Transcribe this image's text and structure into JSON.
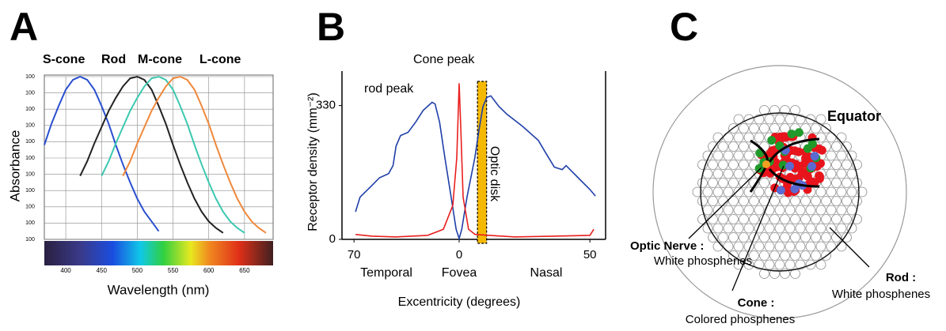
{
  "panels": [
    "A",
    "B",
    "C"
  ],
  "chart_data": [
    {
      "type": "line",
      "x_label": "Wavelength (nm)",
      "y_label": "Absorbance",
      "x": [
        370,
        380,
        390,
        400,
        410,
        420,
        430,
        440,
        450,
        460,
        470,
        480,
        490,
        500,
        510,
        520,
        530,
        540,
        550,
        560,
        570,
        580,
        590,
        600,
        610,
        620,
        630,
        640,
        650,
        660,
        670,
        680,
        690
      ],
      "xlim": [
        370,
        690
      ],
      "xticks": [
        400,
        450,
        500,
        550,
        600,
        650
      ],
      "ylim": [
        0,
        1
      ],
      "yticks": [
        {
          "value": 0,
          "label": "100"
        },
        {
          "value": 0.1,
          "label": "100"
        },
        {
          "value": 0.2,
          "label": "100"
        },
        {
          "value": 0.3,
          "label": "100"
        },
        {
          "value": 0.4,
          "label": "100"
        },
        {
          "value": 0.5,
          "label": "100"
        },
        {
          "value": 0.6,
          "label": "100"
        },
        {
          "value": 0.7,
          "label": "100"
        },
        {
          "value": 0.8,
          "label": "100"
        },
        {
          "value": 0.9,
          "label": "100"
        },
        {
          "value": 1,
          "label": "100"
        }
      ],
      "grid": true,
      "series": [
        {
          "name": "S-cone",
          "color": "#2a4fd0",
          "values": [
            0.58,
            0.71,
            0.82,
            0.92,
            0.98,
            1.0,
            0.98,
            0.92,
            0.82,
            0.71,
            0.58,
            0.46,
            0.35,
            0.25,
            0.17,
            0.11,
            0.05,
            null,
            null,
            null,
            null,
            null,
            null,
            null,
            null,
            null,
            null,
            null,
            null,
            null,
            null,
            null,
            null
          ]
        },
        {
          "name": "Rod",
          "color": "#222222",
          "values": [
            null,
            null,
            null,
            null,
            null,
            0.39,
            0.48,
            0.59,
            0.69,
            0.79,
            0.87,
            0.94,
            0.99,
            1.0,
            0.98,
            0.92,
            0.82,
            0.71,
            0.58,
            0.46,
            0.35,
            0.25,
            0.17,
            0.11,
            0.07,
            0.04,
            null,
            null,
            null,
            null,
            null,
            null,
            null
          ]
        },
        {
          "name": "M-cone",
          "color": "#3cc8b0",
          "values": [
            null,
            null,
            null,
            null,
            null,
            null,
            null,
            null,
            0.39,
            0.48,
            0.59,
            0.69,
            0.79,
            0.87,
            0.94,
            0.99,
            1.0,
            0.98,
            0.92,
            0.82,
            0.71,
            0.58,
            0.46,
            0.35,
            0.25,
            0.17,
            0.11,
            0.07,
            0.04,
            null,
            null,
            null,
            null
          ]
        },
        {
          "name": "L-cone",
          "color": "#f0883a",
          "values": [
            null,
            null,
            null,
            null,
            null,
            null,
            null,
            null,
            null,
            null,
            null,
            0.39,
            0.48,
            0.59,
            0.69,
            0.79,
            0.87,
            0.94,
            0.99,
            1.0,
            0.98,
            0.92,
            0.82,
            0.71,
            0.58,
            0.46,
            0.35,
            0.25,
            0.17,
            0.11,
            0.07,
            0.04,
            null
          ]
        }
      ]
    },
    {
      "type": "line",
      "x_label": "Excentricity (degrees)",
      "y_label": "Receptor density (mm⁻²)",
      "xlim": [
        -78,
        56
      ],
      "xticks": [
        {
          "value": -70,
          "label": "70"
        },
        0,
        50
      ],
      "ylim": [
        0,
        415
      ],
      "yticks": [
        0,
        330
      ],
      "annotations": [
        "Temporal",
        "Fovea",
        "Nasal"
      ],
      "optic_disk": {
        "label": "Optic disk",
        "x": [
          7,
          10.5
        ]
      },
      "series": [
        {
          "name": "rod peak",
          "color": "#1f3fa8",
          "x": [
            -69,
            -66,
            -58,
            -53,
            -47,
            -44,
            -42,
            -39,
            -34,
            -29,
            -24,
            -18,
            -16,
            -13,
            -9.5,
            -5.3,
            -2,
            0,
            1,
            3,
            6,
            7.6,
            9.1,
            10.6,
            12.1,
            15.2,
            18.2,
            24.2,
            30.3,
            33.3,
            36.4,
            39.4,
            40.9,
            42.4,
            45.5,
            50,
            52.1
          ],
          "values": [
            68,
            104,
            133,
            152,
            162,
            182,
            230,
            256,
            264,
            289,
            318,
            338,
            334,
            289,
            201,
            104,
            25,
            2,
            25,
            104,
            201,
            270,
            328,
            350,
            354,
            328,
            309,
            279,
            244,
            211,
            178,
            172,
            182,
            172,
            152,
            123,
            107
          ]
        },
        {
          "name": "Cone peak",
          "color": "#e8201e",
          "x": [
            -69,
            -58,
            -42,
            -21,
            -10.5,
            -4.2,
            -1.6,
            0,
            0.6,
            1.5,
            3.6,
            6.1,
            21.2,
            36.4,
            50,
            51.5
          ],
          "values": [
            12,
            8,
            6,
            10,
            25,
            84,
            201,
            385,
            279,
            104,
            25,
            12,
            6,
            8,
            10,
            25
          ]
        }
      ]
    }
  ],
  "diagram": {
    "equator": "Equator",
    "optic_nerve": {
      "title": "Optic Nerve :",
      "text": "White phosphenes"
    },
    "cone": {
      "title": "Cone :",
      "text": "Colored phosphenes"
    },
    "rod": {
      "title": "Rod :",
      "text": "White phosphenes"
    }
  }
}
